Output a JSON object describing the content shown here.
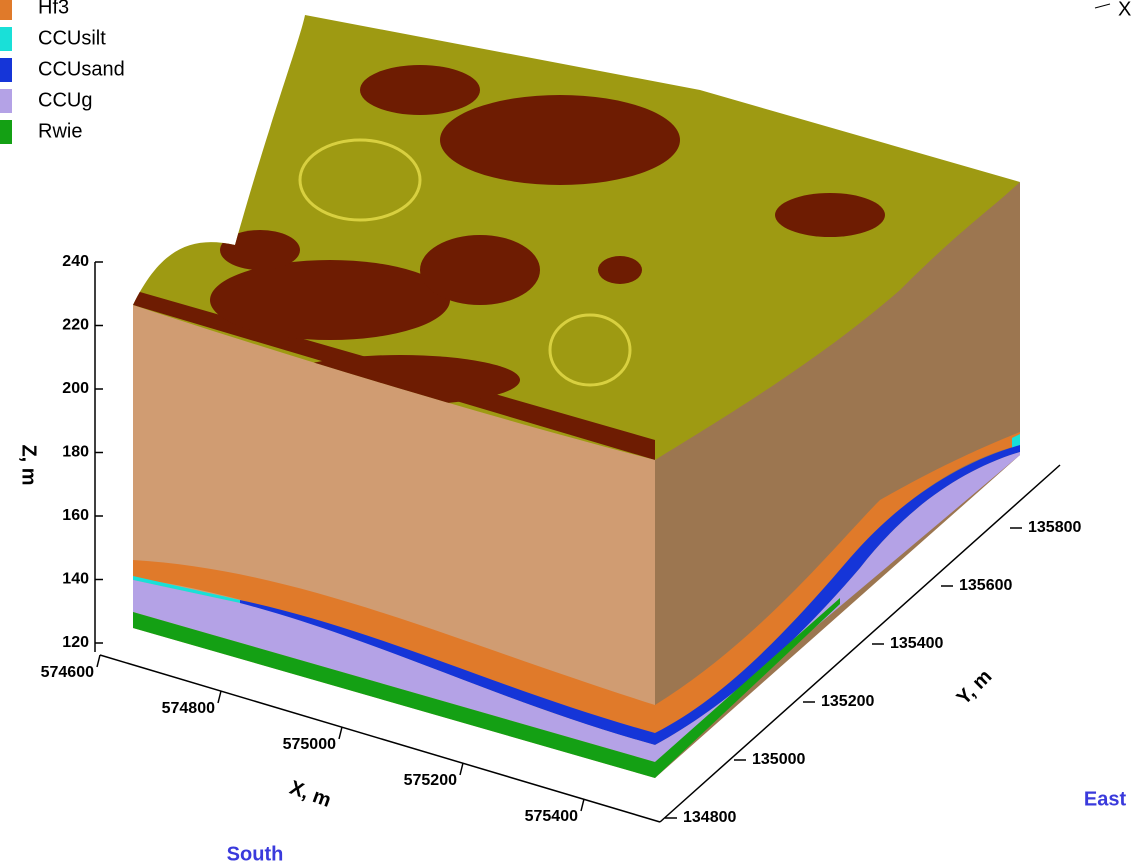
{
  "legend": [
    {
      "label": "Hf3",
      "color": "#e07a2a"
    },
    {
      "label": "CCUsilt",
      "color": "#19e0d8"
    },
    {
      "label": "CCUsand",
      "color": "#1535d8"
    },
    {
      "label": "CCUg",
      "color": "#b4a2e6"
    },
    {
      "label": "Rwie",
      "color": "#14a014"
    }
  ],
  "axes": {
    "z": {
      "label": "Z, m",
      "ticks": [
        120,
        140,
        160,
        180,
        200,
        220,
        240
      ]
    },
    "x": {
      "label": "X, m",
      "ticks": [
        574600,
        574800,
        575000,
        575200,
        575400
      ]
    },
    "y": {
      "label": "Y, m",
      "ticks": [
        134800,
        135000,
        135200,
        135400,
        135600,
        135800
      ]
    }
  },
  "annotations": {
    "corner": "X",
    "east": "East",
    "south": "South"
  }
}
